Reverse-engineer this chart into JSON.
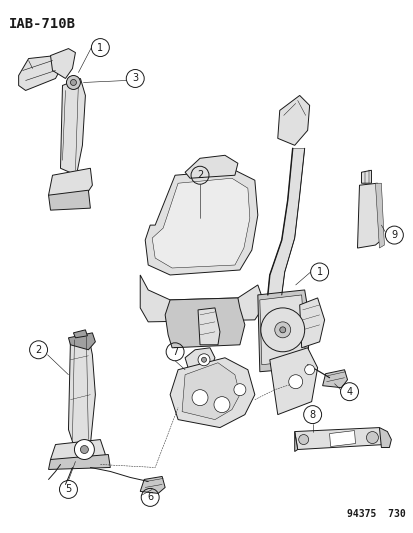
{
  "title": "IAB-710B",
  "footer": "94375  730",
  "bg": "#ffffff",
  "fg": "#1a1a1a",
  "gray1": "#c8c8c8",
  "gray2": "#e0e0e0",
  "gray3": "#a0a0a0",
  "lw_main": 0.7,
  "fig_w": 4.14,
  "fig_h": 5.33,
  "dpi": 100
}
